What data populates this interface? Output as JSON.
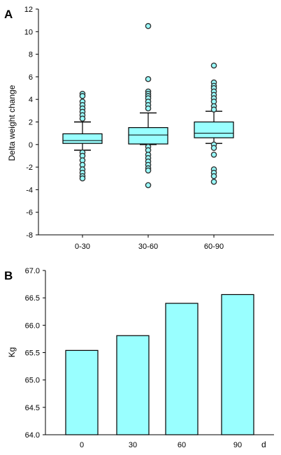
{
  "colors": {
    "fill": "#99ffff",
    "stroke": "#000000",
    "outlier_stroke": "#333333"
  },
  "chart_data": [
    {
      "panel": "A",
      "type": "box",
      "ylabel": "Delta weight change",
      "xlabel": "",
      "ylim": [
        -8,
        12
      ],
      "yticks": [
        -8,
        -6,
        -4,
        -2,
        0,
        2,
        4,
        6,
        8,
        10,
        12
      ],
      "categories": [
        "0-30",
        "30-60",
        "60-90"
      ],
      "boxes": [
        {
          "category": "0-30",
          "whisker_low": -0.5,
          "q1": 0.1,
          "median": 0.35,
          "q3": 0.95,
          "whisker_high": 2.0,
          "outliers": [
            4.5,
            4.3,
            3.8,
            3.5,
            3.2,
            2.9,
            2.6,
            2.3,
            -0.7,
            -1.0,
            -1.4,
            -1.8,
            -2.2,
            -2.5,
            -2.8,
            -3.0
          ]
        },
        {
          "category": "30-60",
          "whisker_low": 0.0,
          "q1": 0.05,
          "median": 0.85,
          "q3": 1.5,
          "whisker_high": 2.8,
          "outliers": [
            10.5,
            5.8,
            4.7,
            4.5,
            4.3,
            4.1,
            3.8,
            3.5,
            3.2,
            -0.2,
            -0.5,
            -0.9,
            -1.2,
            -1.5,
            -1.8,
            -2.1,
            -2.3,
            -3.6
          ]
        },
        {
          "category": "60-90",
          "whisker_low": 0.1,
          "q1": 0.6,
          "median": 1.0,
          "q3": 2.0,
          "whisker_high": 2.95,
          "outliers": [
            7.0,
            5.5,
            5.2,
            5.0,
            4.7,
            4.4,
            4.1,
            3.8,
            3.4,
            3.1,
            0.0,
            -0.3,
            -0.9,
            -2.2,
            -2.5,
            -2.8,
            -3.3
          ]
        }
      ]
    },
    {
      "panel": "B",
      "type": "bar",
      "ylabel": "Kg",
      "xlabel": "d",
      "ylim": [
        64.0,
        67.0
      ],
      "yticks": [
        "64.0",
        "64.5",
        "65.0",
        "65.5",
        "66.0",
        "66.5",
        "67.0"
      ],
      "categories": [
        "0",
        "30",
        "60",
        "90"
      ],
      "values": [
        65.54,
        65.81,
        66.4,
        66.56
      ]
    }
  ]
}
